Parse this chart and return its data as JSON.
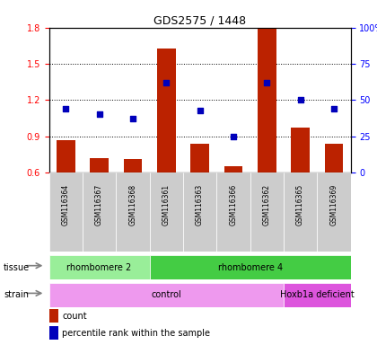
{
  "title": "GDS2575 / 1448",
  "samples": [
    "GSM116364",
    "GSM116367",
    "GSM116368",
    "GSM116361",
    "GSM116363",
    "GSM116366",
    "GSM116362",
    "GSM116365",
    "GSM116369"
  ],
  "counts": [
    0.87,
    0.72,
    0.71,
    1.63,
    0.84,
    0.65,
    1.79,
    0.97,
    0.84
  ],
  "percentiles": [
    44,
    40,
    37,
    62,
    43,
    25,
    62,
    50,
    44
  ],
  "ylim_left": [
    0.6,
    1.8
  ],
  "ylim_right": [
    0,
    100
  ],
  "yticks_left": [
    0.6,
    0.9,
    1.2,
    1.5,
    1.8
  ],
  "yticks_right": [
    0,
    25,
    50,
    75,
    100
  ],
  "ytick_labels_left": [
    "0.6",
    "0.9",
    "1.2",
    "1.5",
    "1.8"
  ],
  "ytick_labels_right": [
    "0",
    "25",
    "50",
    "75",
    "100%"
  ],
  "bar_color": "#bb2200",
  "dot_color": "#0000bb",
  "tissue_groups": [
    {
      "label": "rhombomere 2",
      "start": 0,
      "end": 3,
      "color": "#99ee99"
    },
    {
      "label": "rhombomere 4",
      "start": 3,
      "end": 9,
      "color": "#44cc44"
    }
  ],
  "strain_groups": [
    {
      "label": "control",
      "start": 0,
      "end": 7,
      "color": "#ee99ee"
    },
    {
      "label": "Hoxb1a deficient",
      "start": 7,
      "end": 9,
      "color": "#dd55dd"
    }
  ],
  "legend_count_label": "count",
  "legend_pct_label": "percentile rank within the sample"
}
